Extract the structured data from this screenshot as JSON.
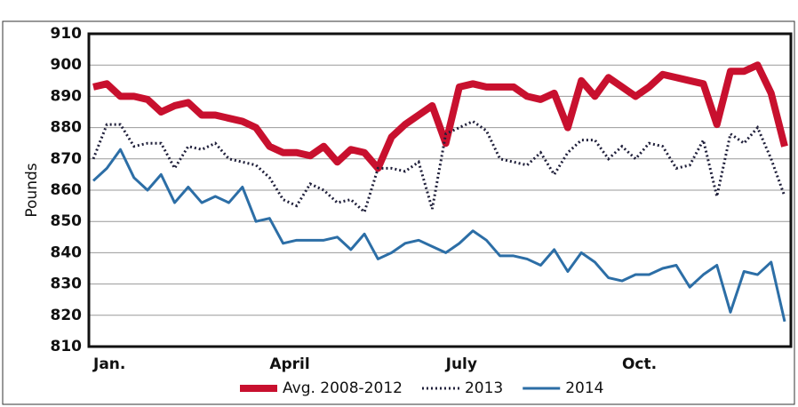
{
  "chart_data": {
    "type": "line",
    "y_label": "Pounds",
    "categories": [
      "Jan.",
      null,
      null,
      null,
      null,
      null,
      null,
      null,
      null,
      null,
      null,
      null,
      null,
      "April",
      null,
      null,
      null,
      null,
      null,
      null,
      null,
      null,
      null,
      null,
      null,
      null,
      "July",
      null,
      null,
      null,
      null,
      null,
      null,
      null,
      null,
      null,
      null,
      null,
      null,
      "Oct.",
      null,
      null,
      null,
      null,
      null,
      null,
      null,
      null,
      null,
      null,
      null,
      null
    ],
    "series": [
      {
        "name": "Avg. 2008-2012",
        "color": "#c8102e",
        "style": "thick",
        "values": [
          893,
          894,
          890,
          890,
          889,
          885,
          887,
          888,
          884,
          884,
          883,
          882,
          880,
          874,
          872,
          872,
          871,
          874,
          869,
          873,
          872,
          867,
          877,
          881,
          884,
          887,
          875,
          893,
          894,
          893,
          893,
          893,
          890,
          889,
          891,
          880,
          895,
          890,
          896,
          893,
          890,
          893,
          897,
          896,
          895,
          894,
          881,
          898,
          898,
          900,
          891,
          874
        ]
      },
      {
        "name": "2013",
        "color": "#1f1f3a",
        "style": "dotted",
        "values": [
          870,
          881,
          881,
          874,
          875,
          875,
          867,
          874,
          873,
          875,
          870,
          869,
          868,
          864,
          857,
          855,
          862,
          860,
          856,
          857,
          853,
          867,
          867,
          866,
          869,
          854,
          878,
          880,
          882,
          879,
          870,
          869,
          868,
          872,
          865,
          872,
          876,
          876,
          870,
          874,
          870,
          875,
          874,
          867,
          868,
          876,
          858,
          878,
          875,
          880,
          870,
          858
        ]
      },
      {
        "name": "2014",
        "color": "#2c6ea6",
        "style": "solid",
        "values": [
          863,
          867,
          873,
          864,
          860,
          865,
          856,
          861,
          856,
          858,
          856,
          861,
          850,
          851,
          843,
          844,
          844,
          844,
          845,
          841,
          846,
          838,
          840,
          843,
          844,
          842,
          840,
          843,
          847,
          844,
          839,
          839,
          838,
          836,
          841,
          834,
          840,
          837,
          832,
          831,
          833,
          833,
          835,
          836,
          829,
          833,
          836,
          821,
          834,
          833,
          837,
          818
        ]
      }
    ],
    "ylim": [
      810,
      910
    ],
    "yticks": [
      810,
      820,
      830,
      840,
      850,
      860,
      870,
      880,
      890,
      900,
      910
    ],
    "grid": true
  }
}
